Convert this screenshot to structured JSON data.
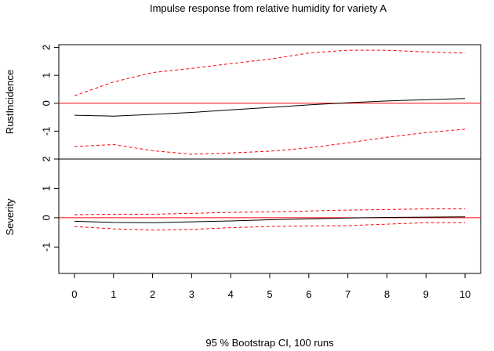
{
  "chart_data": {
    "type": "line",
    "title": "Impulse response from relative humidity for variety A",
    "xlabel": "95 % Bootstrap CI,  100 runs",
    "x": [
      0,
      1,
      2,
      3,
      4,
      5,
      6,
      7,
      8,
      9,
      10
    ],
    "x_ticks": [
      "0",
      "1",
      "2",
      "3",
      "4",
      "5",
      "6",
      "7",
      "8",
      "9",
      "10"
    ],
    "xlim": [
      -0.4,
      10.4
    ],
    "grid": false,
    "panels": [
      {
        "ylabel": "RustIncidence",
        "ylim": [
          -2,
          2.1
        ],
        "y_ticks": [
          "-1",
          "0",
          "1",
          "2"
        ],
        "y_tick_values": [
          -1,
          0,
          1,
          2
        ],
        "zero_line_color": "#ff0000",
        "series": [
          {
            "role": "response",
            "color": "#000000",
            "style": "solid",
            "values": [
              -0.43,
              -0.46,
              -0.4,
              -0.33,
              -0.24,
              -0.15,
              -0.06,
              0.02,
              0.08,
              0.13,
              0.17
            ]
          },
          {
            "role": "upper",
            "color": "#ff0000",
            "style": "dashed",
            "values": [
              0.27,
              0.76,
              1.1,
              1.25,
              1.42,
              1.58,
              1.8,
              1.9,
              1.9,
              1.84,
              1.8
            ]
          },
          {
            "role": "lower",
            "color": "#ff0000",
            "style": "dashed",
            "values": [
              -1.55,
              -1.48,
              -1.7,
              -1.83,
              -1.78,
              -1.72,
              -1.6,
              -1.42,
              -1.22,
              -1.05,
              -0.93
            ]
          }
        ]
      },
      {
        "ylabel": "Severity",
        "ylim": [
          -1.9,
          2.0
        ],
        "y_ticks": [
          "-1",
          "0",
          "1",
          "2"
        ],
        "y_tick_values": [
          -1,
          0,
          1,
          2
        ],
        "zero_line_color": "#ff0000",
        "series": [
          {
            "role": "response",
            "color": "#000000",
            "style": "solid",
            "values": [
              -0.12,
              -0.16,
              -0.17,
              -0.14,
              -0.11,
              -0.07,
              -0.04,
              -0.01,
              0.01,
              0.02,
              0.03
            ]
          },
          {
            "role": "upper",
            "color": "#ff0000",
            "style": "dashed",
            "values": [
              0.1,
              0.12,
              0.12,
              0.15,
              0.18,
              0.2,
              0.23,
              0.26,
              0.28,
              0.3,
              0.3
            ]
          },
          {
            "role": "lower",
            "color": "#ff0000",
            "style": "dashed",
            "values": [
              -0.3,
              -0.38,
              -0.42,
              -0.4,
              -0.34,
              -0.3,
              -0.28,
              -0.27,
              -0.22,
              -0.17,
              -0.17
            ]
          }
        ]
      }
    ]
  }
}
